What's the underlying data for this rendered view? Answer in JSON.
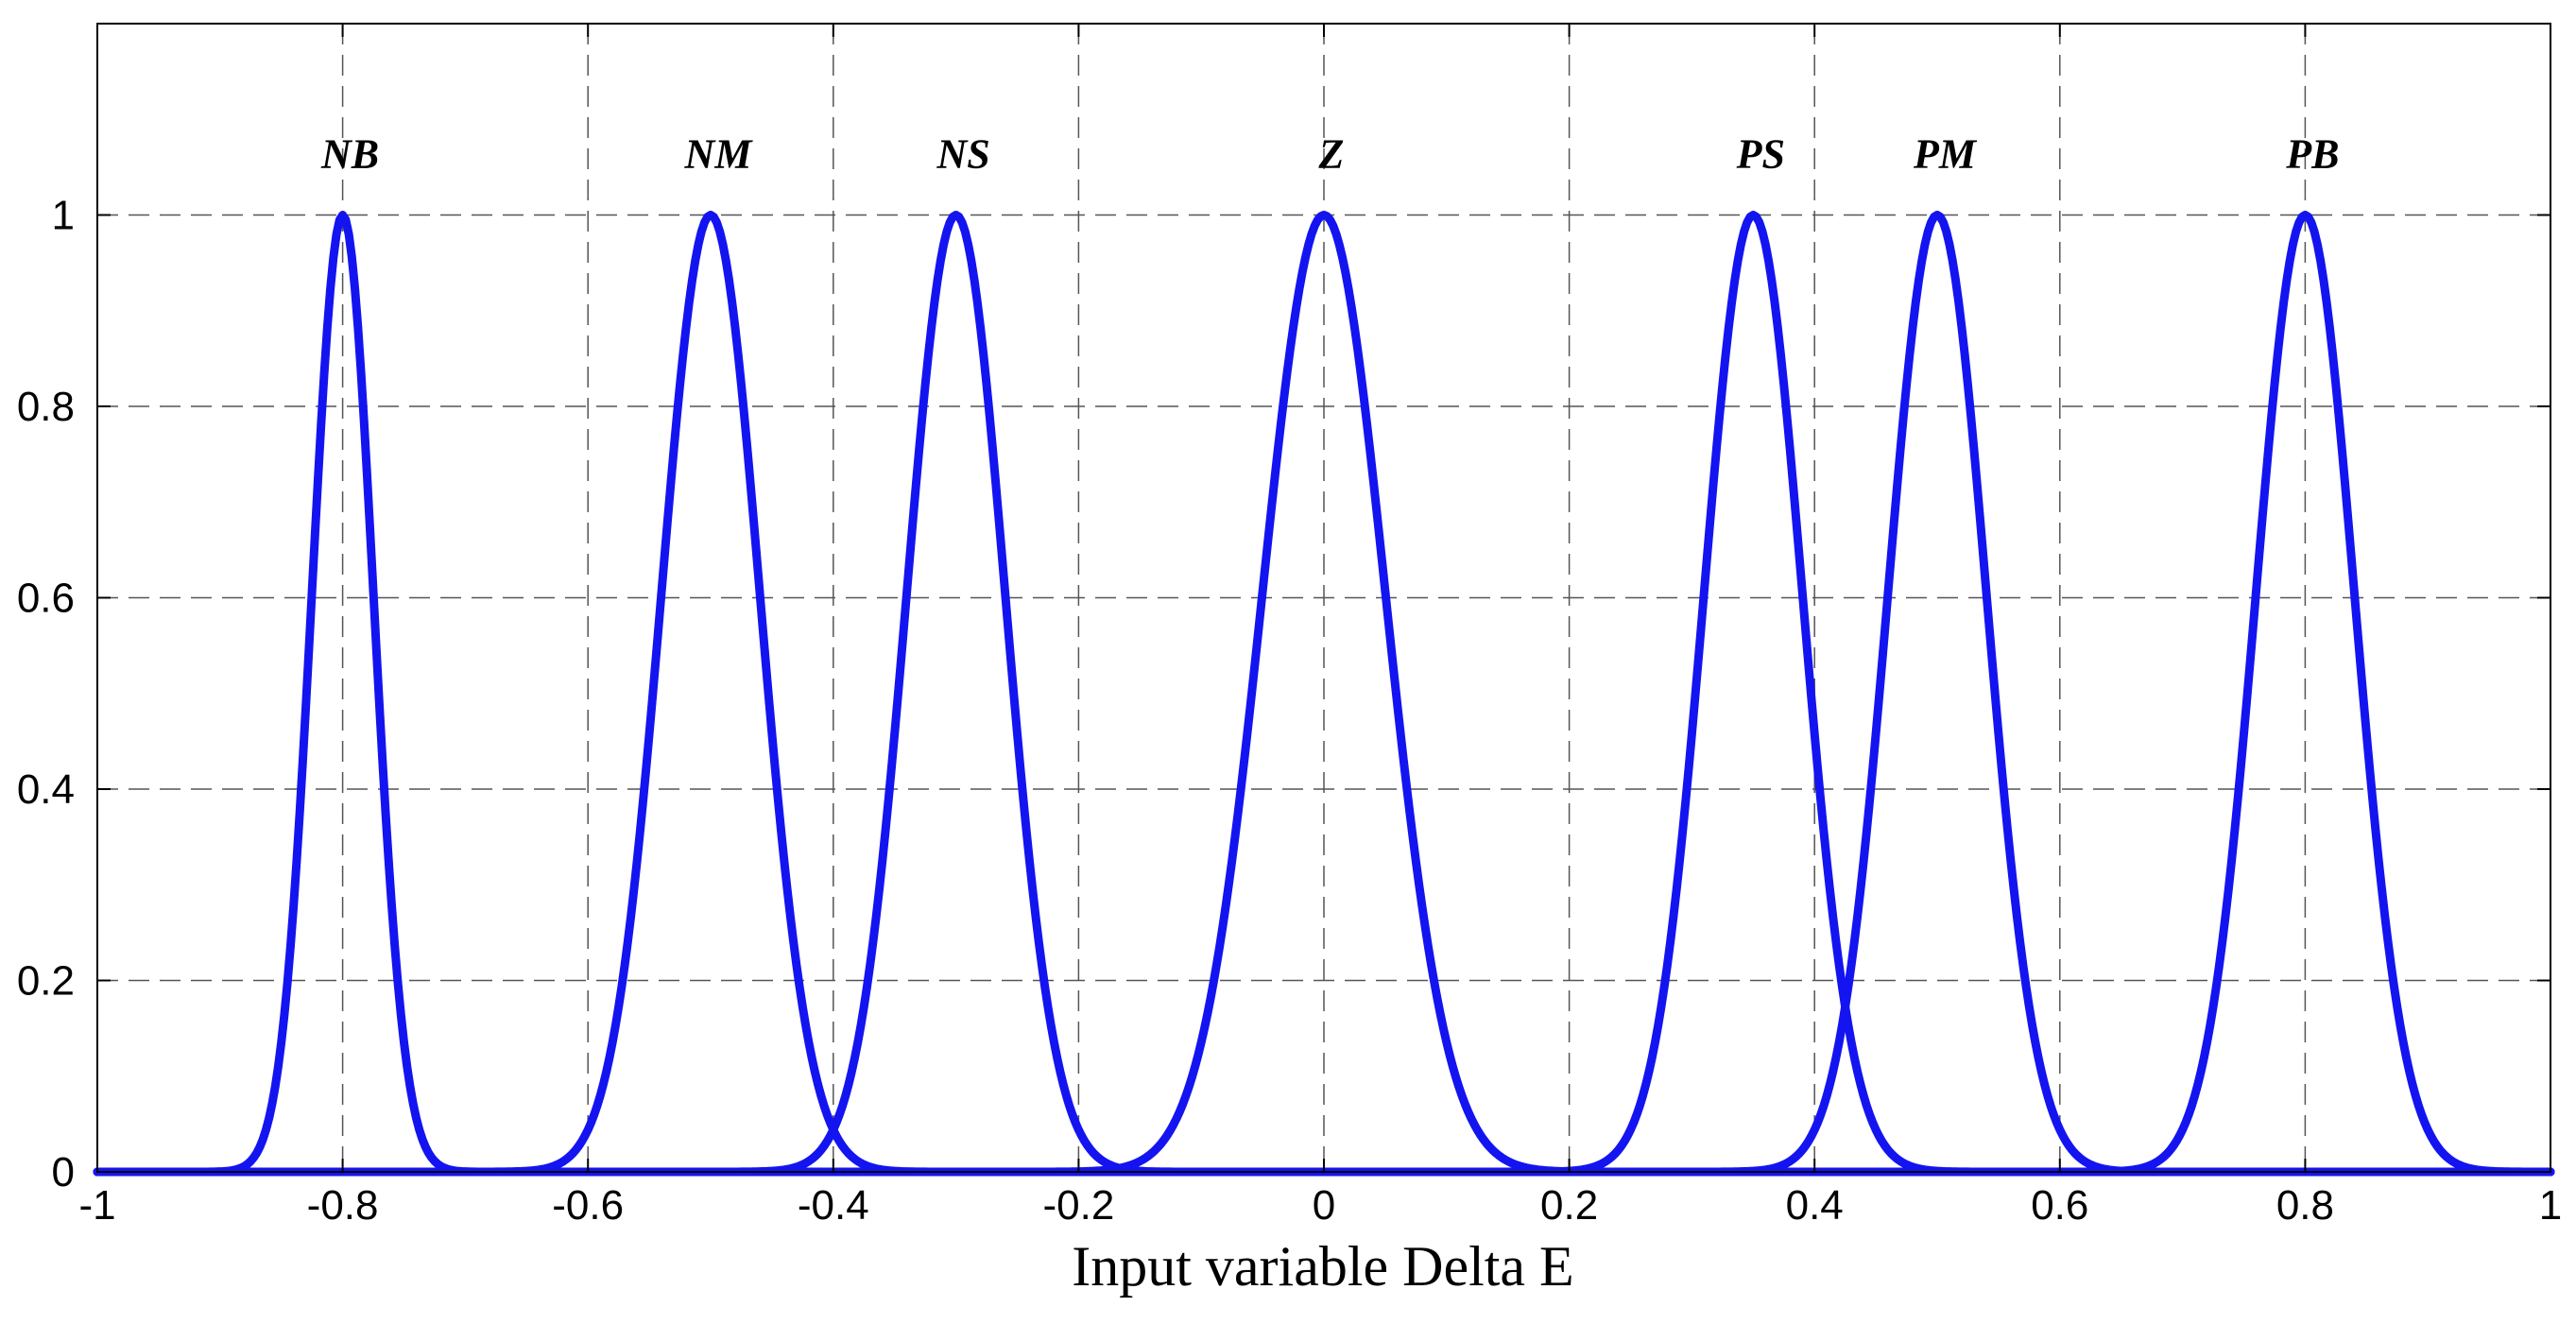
{
  "chart_data": {
    "type": "line",
    "title": "",
    "xlabel": "Input variable Delta E",
    "ylabel": "",
    "xlim": [
      -1,
      1
    ],
    "ylim": [
      0,
      1.2
    ],
    "grid": true,
    "grid_style": "dashed",
    "line_color": "#1414f0",
    "xticks": [
      -1,
      -0.8,
      -0.6,
      -0.4,
      -0.2,
      0,
      0.2,
      0.4,
      0.6,
      0.8,
      1
    ],
    "xtick_labels": [
      "-1",
      "-0.8",
      "-0.6",
      "-0.4",
      "-0.2",
      "0",
      "0.2",
      "0.4",
      "0.6",
      "0.8",
      "1"
    ],
    "yticks": [
      0,
      0.2,
      0.4,
      0.6,
      0.8,
      1
    ],
    "ytick_labels": [
      "0",
      "0.2",
      "0.4",
      "0.6",
      "0.8",
      "1"
    ],
    "series": [
      {
        "name": "NB",
        "center": -0.8,
        "sigma": 0.025
      },
      {
        "name": "NM",
        "center": -0.5,
        "sigma": 0.04
      },
      {
        "name": "NS",
        "center": -0.3,
        "sigma": 0.04
      },
      {
        "name": "Z",
        "center": 0,
        "sigma": 0.05
      },
      {
        "name": "PS",
        "center": 0.35,
        "sigma": 0.04
      },
      {
        "name": "PM",
        "center": 0.5,
        "sigma": 0.04
      },
      {
        "name": "PB",
        "center": 0.8,
        "sigma": 0.04
      }
    ]
  }
}
